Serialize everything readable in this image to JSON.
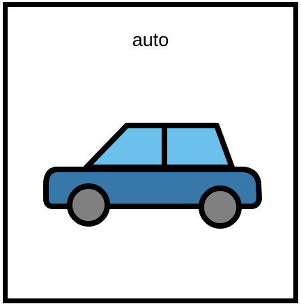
{
  "card": {
    "label": "auto",
    "icon": "car-icon"
  },
  "colors": {
    "border": "#000000",
    "body": "#3878A8",
    "windows": "#6CC0EC",
    "wheels": "#808080",
    "background": "#ffffff"
  }
}
